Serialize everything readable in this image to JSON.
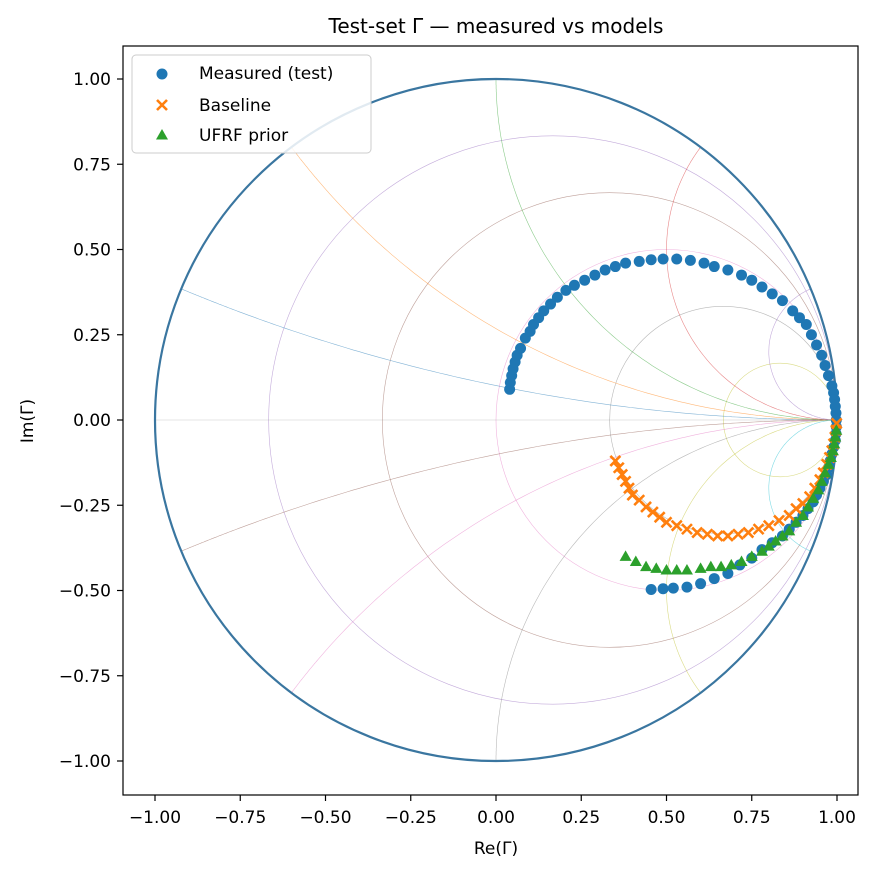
{
  "chart_data": {
    "type": "scatter",
    "title": "Test-set Γ — measured vs models",
    "xlabel": "Re(Γ)",
    "ylabel": "Im(Γ)",
    "xlim": [
      -1.1,
      1.1
    ],
    "ylim": [
      -1.1,
      1.1
    ],
    "xticks": [
      -1.0,
      -0.75,
      -0.5,
      -0.25,
      0.0,
      0.25,
      0.5,
      0.75,
      1.0
    ],
    "yticks": [
      -1.0,
      -0.75,
      -0.5,
      -0.25,
      0.0,
      0.25,
      0.5,
      0.75,
      1.0
    ],
    "xtick_labels": [
      "−1.00",
      "−0.75",
      "−0.50",
      "−0.25",
      "0.00",
      "0.25",
      "0.50",
      "0.75",
      "1.00"
    ],
    "ytick_labels": [
      "−1.00",
      "−0.75",
      "−0.50",
      "−0.25",
      "0.00",
      "0.25",
      "0.50",
      "0.75",
      "1.00"
    ],
    "grid": false,
    "legend_position": "top-left",
    "smith_chart": {
      "unit_circle": true,
      "unit_circle_color": "#3a76a0",
      "constant_resistance": [
        0.2,
        0.5,
        1,
        2,
        5
      ],
      "constant_reactance": [
        0.2,
        0.5,
        1,
        2,
        5,
        -0.2,
        -0.5,
        -1,
        -2,
        -5
      ]
    },
    "series": [
      {
        "name": "Measured (test)",
        "marker": "circle",
        "color": "#1f77b4",
        "points": [
          [
            0.04,
            0.09
          ],
          [
            0.042,
            0.11
          ],
          [
            0.046,
            0.13
          ],
          [
            0.05,
            0.15
          ],
          [
            0.056,
            0.17
          ],
          [
            0.062,
            0.19
          ],
          [
            0.072,
            0.21
          ],
          [
            0.086,
            0.24
          ],
          [
            0.1,
            0.26
          ],
          [
            0.11,
            0.28
          ],
          [
            0.125,
            0.3
          ],
          [
            0.14,
            0.32
          ],
          [
            0.16,
            0.34
          ],
          [
            0.18,
            0.36
          ],
          [
            0.205,
            0.38
          ],
          [
            0.23,
            0.395
          ],
          [
            0.26,
            0.41
          ],
          [
            0.29,
            0.425
          ],
          [
            0.32,
            0.44
          ],
          [
            0.35,
            0.45
          ],
          [
            0.38,
            0.46
          ],
          [
            0.42,
            0.465
          ],
          [
            0.455,
            0.47
          ],
          [
            0.49,
            0.472
          ],
          [
            0.53,
            0.472
          ],
          [
            0.57,
            0.468
          ],
          [
            0.61,
            0.46
          ],
          [
            0.64,
            0.45
          ],
          [
            0.68,
            0.44
          ],
          [
            0.72,
            0.425
          ],
          [
            0.75,
            0.41
          ],
          [
            0.78,
            0.39
          ],
          [
            0.81,
            0.37
          ],
          [
            0.84,
            0.35
          ],
          [
            0.87,
            0.32
          ],
          [
            0.89,
            0.3
          ],
          [
            0.91,
            0.28
          ],
          [
            0.925,
            0.25
          ],
          [
            0.94,
            0.22
          ],
          [
            0.955,
            0.19
          ],
          [
            0.965,
            0.16
          ],
          [
            0.975,
            0.13
          ],
          [
            0.985,
            0.1
          ],
          [
            0.99,
            0.08
          ],
          [
            0.993,
            0.06
          ],
          [
            0.995,
            0.04
          ],
          [
            0.997,
            0.02
          ],
          [
            0.998,
            0.0
          ],
          [
            0.998,
            -0.02
          ],
          [
            0.997,
            -0.04
          ],
          [
            0.995,
            -0.06
          ],
          [
            0.99,
            -0.08
          ],
          [
            0.985,
            -0.1
          ],
          [
            0.98,
            -0.12
          ],
          [
            0.975,
            -0.14
          ],
          [
            0.97,
            -0.16
          ],
          [
            0.96,
            -0.18
          ],
          [
            0.95,
            -0.2
          ],
          [
            0.94,
            -0.22
          ],
          [
            0.93,
            -0.24
          ],
          [
            0.915,
            -0.26
          ],
          [
            0.9,
            -0.28
          ],
          [
            0.88,
            -0.3
          ],
          [
            0.86,
            -0.32
          ],
          [
            0.84,
            -0.34
          ],
          [
            0.81,
            -0.36
          ],
          [
            0.78,
            -0.38
          ],
          [
            0.75,
            -0.405
          ],
          [
            0.715,
            -0.425
          ],
          [
            0.68,
            -0.45
          ],
          [
            0.64,
            -0.465
          ],
          [
            0.6,
            -0.48
          ],
          [
            0.56,
            -0.49
          ],
          [
            0.52,
            -0.493
          ],
          [
            0.49,
            -0.495
          ],
          [
            0.455,
            -0.497
          ]
        ]
      },
      {
        "name": "Baseline",
        "marker": "x",
        "color": "#ff7f0e",
        "points": [
          [
            0.35,
            -0.12
          ],
          [
            0.36,
            -0.14
          ],
          [
            0.37,
            -0.16
          ],
          [
            0.38,
            -0.18
          ],
          [
            0.39,
            -0.2
          ],
          [
            0.4,
            -0.22
          ],
          [
            0.42,
            -0.235
          ],
          [
            0.44,
            -0.255
          ],
          [
            0.46,
            -0.27
          ],
          [
            0.48,
            -0.285
          ],
          [
            0.5,
            -0.3
          ],
          [
            0.53,
            -0.31
          ],
          [
            0.56,
            -0.32
          ],
          [
            0.59,
            -0.33
          ],
          [
            0.62,
            -0.335
          ],
          [
            0.65,
            -0.34
          ],
          [
            0.68,
            -0.34
          ],
          [
            0.71,
            -0.335
          ],
          [
            0.74,
            -0.33
          ],
          [
            0.77,
            -0.32
          ],
          [
            0.8,
            -0.31
          ],
          [
            0.83,
            -0.295
          ],
          [
            0.86,
            -0.28
          ],
          [
            0.88,
            -0.26
          ],
          [
            0.9,
            -0.245
          ],
          [
            0.92,
            -0.225
          ],
          [
            0.935,
            -0.2
          ],
          [
            0.95,
            -0.175
          ],
          [
            0.96,
            -0.155
          ],
          [
            0.97,
            -0.13
          ],
          [
            0.978,
            -0.11
          ],
          [
            0.985,
            -0.09
          ],
          [
            0.99,
            -0.07
          ],
          [
            0.994,
            -0.05
          ],
          [
            0.997,
            -0.03
          ],
          [
            0.999,
            -0.01
          ]
        ]
      },
      {
        "name": "UFRF prior",
        "marker": "triangle",
        "color": "#2ca02c",
        "points": [
          [
            0.38,
            -0.4
          ],
          [
            0.41,
            -0.415
          ],
          [
            0.44,
            -0.43
          ],
          [
            0.47,
            -0.435
          ],
          [
            0.5,
            -0.44
          ],
          [
            0.53,
            -0.44
          ],
          [
            0.56,
            -0.44
          ],
          [
            0.6,
            -0.435
          ],
          [
            0.63,
            -0.43
          ],
          [
            0.66,
            -0.43
          ],
          [
            0.69,
            -0.425
          ],
          [
            0.72,
            -0.415
          ],
          [
            0.75,
            -0.4
          ],
          [
            0.78,
            -0.385
          ],
          [
            0.8,
            -0.37
          ],
          [
            0.82,
            -0.355
          ],
          [
            0.84,
            -0.34
          ],
          [
            0.86,
            -0.325
          ],
          [
            0.88,
            -0.3
          ],
          [
            0.9,
            -0.28
          ],
          [
            0.915,
            -0.255
          ],
          [
            0.93,
            -0.23
          ],
          [
            0.945,
            -0.205
          ],
          [
            0.955,
            -0.18
          ],
          [
            0.965,
            -0.155
          ],
          [
            0.975,
            -0.13
          ],
          [
            0.982,
            -0.11
          ],
          [
            0.988,
            -0.09
          ],
          [
            0.992,
            -0.07
          ],
          [
            0.995,
            -0.05
          ],
          [
            0.998,
            -0.03
          ]
        ]
      }
    ]
  }
}
